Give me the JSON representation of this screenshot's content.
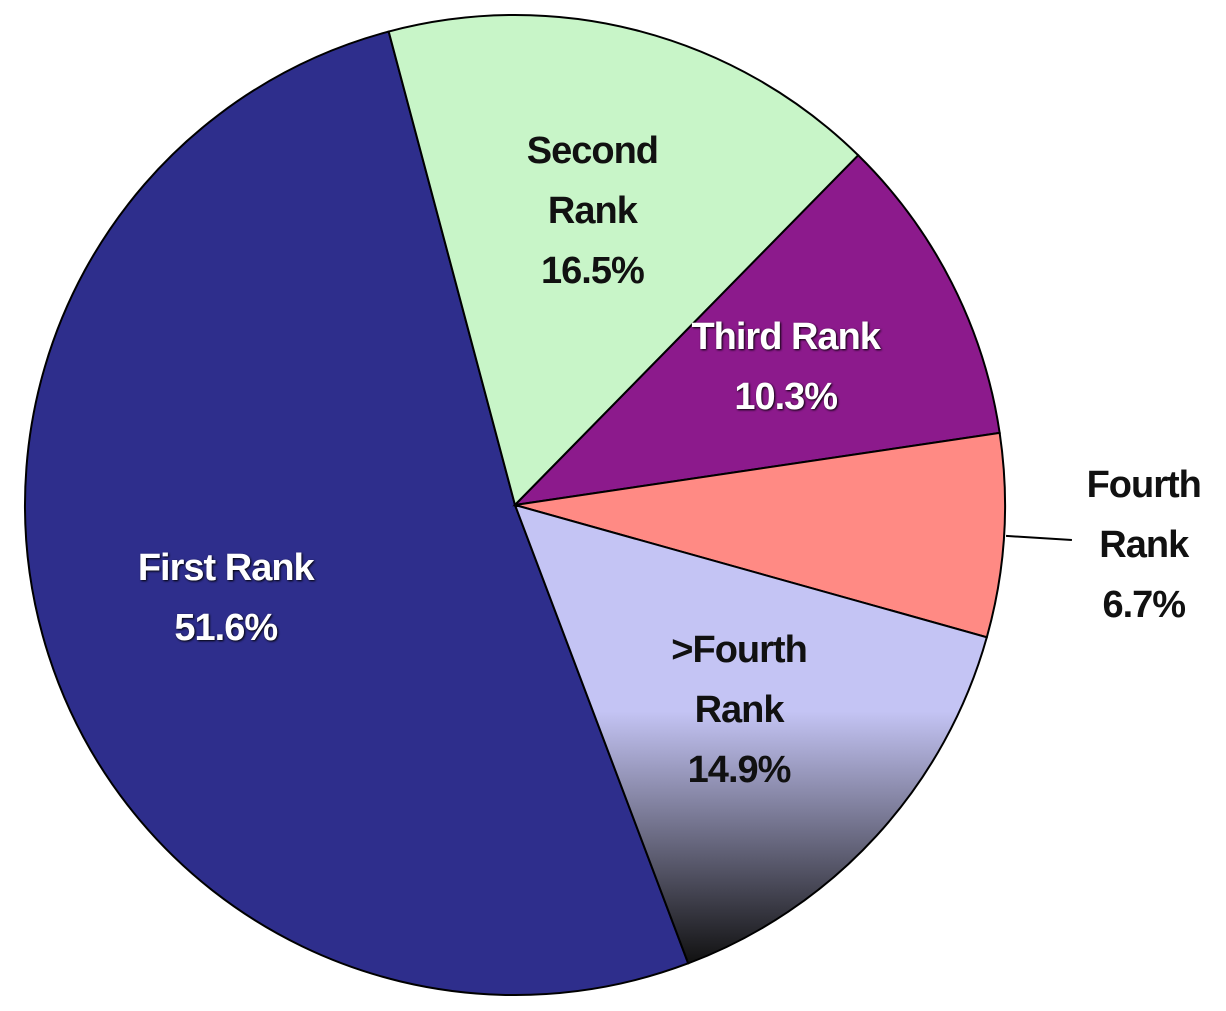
{
  "chart_data": {
    "type": "pie",
    "categories": [
      "First Rank",
      "Second Rank",
      "Third Rank",
      "Fourth Rank",
      ">Fourth Rank"
    ],
    "values": [
      51.6,
      16.5,
      10.3,
      6.7,
      14.9
    ],
    "value_labels": [
      "51.6%",
      "16.5%",
      "10.3%",
      "6.7%",
      "14.9%"
    ],
    "colors": [
      "#2e2e8c",
      "#c8f5c8",
      "#8c1a8c",
      "#ff8a84",
      "#c4c4f4"
    ]
  }
}
